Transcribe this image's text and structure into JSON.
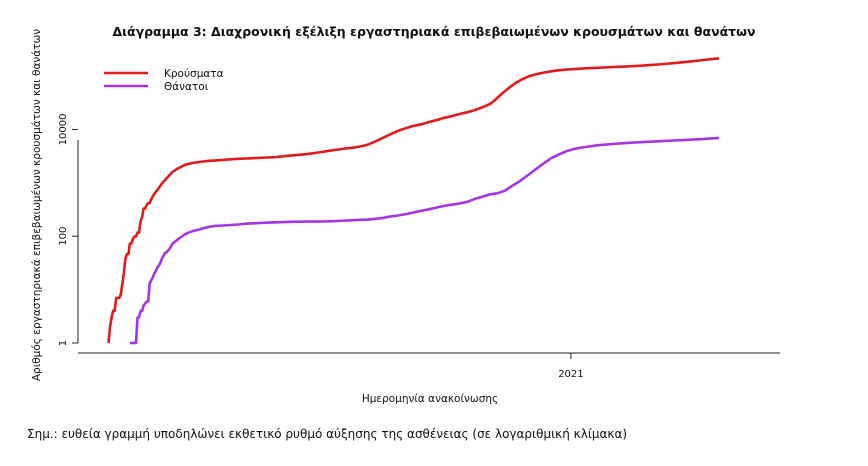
{
  "chart_data": {
    "type": "line",
    "title": "Διάγραμμα 3: Διαχρονική εξέλιξη εργαστηριακά επιβεβαιωμένων κρουσμάτων και θανάτων",
    "xlabel": "Ημερομηνία ανακοίνωσης",
    "ylabel": "Αριθμός εργαστηριακά επιβεβαιωμένων κρουσμάτων και θανάτων",
    "y_scale": "log",
    "ylim": [
      1,
      200000
    ],
    "xlim": [
      -20,
      440
    ],
    "x_unit": "days since first reported case",
    "x_ticks": [
      {
        "x": 303,
        "label": "2021"
      }
    ],
    "y_ticks": [
      {
        "value": 1,
        "label": "1"
      },
      {
        "value": 100,
        "label": "100"
      },
      {
        "value": 10000,
        "label": "10000"
      }
    ],
    "legend_position": "top-left",
    "series": [
      {
        "name": "Κρούσματα",
        "color": "#e11b1b",
        "points": [
          [
            0,
            1
          ],
          [
            1,
            2
          ],
          [
            2,
            3
          ],
          [
            3,
            4
          ],
          [
            4,
            4
          ],
          [
            5,
            7
          ],
          [
            6,
            7
          ],
          [
            7,
            7
          ],
          [
            8,
            8
          ],
          [
            10,
            20
          ],
          [
            11,
            37
          ],
          [
            12,
            46
          ],
          [
            13,
            46
          ],
          [
            14,
            73
          ],
          [
            15,
            73
          ],
          [
            16,
            89
          ],
          [
            17,
            99
          ],
          [
            18,
            99
          ],
          [
            19,
            117
          ],
          [
            20,
            117
          ],
          [
            21,
            190
          ],
          [
            22,
            228
          ],
          [
            23,
            331
          ],
          [
            24,
            331
          ],
          [
            25,
            387
          ],
          [
            26,
            418
          ],
          [
            27,
            418
          ],
          [
            28,
            495
          ],
          [
            30,
            624
          ],
          [
            32,
            735
          ],
          [
            35,
            966
          ],
          [
            38,
            1212
          ],
          [
            42,
            1613
          ],
          [
            45,
            1832
          ],
          [
            50,
            2170
          ],
          [
            55,
            2351
          ],
          [
            60,
            2470
          ],
          [
            65,
            2576
          ],
          [
            70,
            2632
          ],
          [
            75,
            2690
          ],
          [
            80,
            2760
          ],
          [
            85,
            2820
          ],
          [
            90,
            2860
          ],
          [
            95,
            2900
          ],
          [
            100,
            2950
          ],
          [
            105,
            3000
          ],
          [
            110,
            3050
          ],
          [
            115,
            3150
          ],
          [
            120,
            3260
          ],
          [
            125,
            3350
          ],
          [
            130,
            3450
          ],
          [
            135,
            3600
          ],
          [
            140,
            3800
          ],
          [
            145,
            4000
          ],
          [
            150,
            4200
          ],
          [
            155,
            4400
          ],
          [
            160,
            4550
          ],
          [
            165,
            4800
          ],
          [
            170,
            5200
          ],
          [
            175,
            6000
          ],
          [
            180,
            7000
          ],
          [
            185,
            8200
          ],
          [
            190,
            9500
          ],
          [
            195,
            10600
          ],
          [
            200,
            11700
          ],
          [
            205,
            12500
          ],
          [
            210,
            13800
          ],
          [
            215,
            15000
          ],
          [
            220,
            16500
          ],
          [
            225,
            17800
          ],
          [
            230,
            19500
          ],
          [
            235,
            21000
          ],
          [
            240,
            23000
          ],
          [
            245,
            26000
          ],
          [
            250,
            30000
          ],
          [
            253,
            35000
          ],
          [
            256,
            42000
          ],
          [
            260,
            53000
          ],
          [
            263,
            62000
          ],
          [
            267,
            75000
          ],
          [
            270,
            84000
          ],
          [
            275,
            98000
          ],
          [
            280,
            108000
          ],
          [
            285,
            116000
          ],
          [
            290,
            123000
          ],
          [
            295,
            128000
          ],
          [
            300,
            132000
          ],
          [
            310,
            138000
          ],
          [
            320,
            143000
          ],
          [
            330,
            147000
          ],
          [
            340,
            152000
          ],
          [
            350,
            157000
          ],
          [
            360,
            165000
          ],
          [
            370,
            174000
          ],
          [
            380,
            186000
          ],
          [
            390,
            200000
          ],
          [
            400,
            215000
          ]
        ]
      },
      {
        "name": "Θάνατοι",
        "color": "#a435e6",
        "points": [
          [
            14,
            1
          ],
          [
            15,
            1
          ],
          [
            16,
            1
          ],
          [
            17,
            1
          ],
          [
            18,
            1
          ],
          [
            19,
            3
          ],
          [
            20,
            3
          ],
          [
            21,
            4
          ],
          [
            22,
            4
          ],
          [
            23,
            5
          ],
          [
            25,
            6
          ],
          [
            26,
            6
          ],
          [
            27,
            13
          ],
          [
            28,
            15
          ],
          [
            29,
            17
          ],
          [
            30,
            20
          ],
          [
            31,
            22
          ],
          [
            32,
            26
          ],
          [
            33,
            28
          ],
          [
            34,
            32
          ],
          [
            35,
            38
          ],
          [
            36,
            43
          ],
          [
            37,
            48
          ],
          [
            38,
            50
          ],
          [
            40,
            58
          ],
          [
            42,
            73
          ],
          [
            44,
            81
          ],
          [
            46,
            90
          ],
          [
            48,
            99
          ],
          [
            50,
            108
          ],
          [
            52,
            116
          ],
          [
            55,
            124
          ],
          [
            58,
            130
          ],
          [
            61,
            138
          ],
          [
            64,
            146
          ],
          [
            67,
            152
          ],
          [
            70,
            156
          ],
          [
            75,
            159
          ],
          [
            80,
            162
          ],
          [
            85,
            166
          ],
          [
            90,
            172
          ],
          [
            95,
            175
          ],
          [
            100,
            178
          ],
          [
            105,
            180
          ],
          [
            110,
            182
          ],
          [
            115,
            184
          ],
          [
            120,
            186
          ],
          [
            125,
            187
          ],
          [
            130,
            188
          ],
          [
            135,
            188
          ],
          [
            140,
            189
          ],
          [
            145,
            190
          ],
          [
            150,
            193
          ],
          [
            155,
            196
          ],
          [
            160,
            200
          ],
          [
            165,
            203
          ],
          [
            170,
            205
          ],
          [
            175,
            212
          ],
          [
            180,
            220
          ],
          [
            185,
            235
          ],
          [
            190,
            246
          ],
          [
            195,
            260
          ],
          [
            200,
            280
          ],
          [
            205,
            300
          ],
          [
            210,
            320
          ],
          [
            215,
            345
          ],
          [
            220,
            370
          ],
          [
            225,
            390
          ],
          [
            230,
            410
          ],
          [
            235,
            440
          ],
          [
            240,
            500
          ],
          [
            245,
            550
          ],
          [
            250,
            610
          ],
          [
            255,
            640
          ],
          [
            260,
            720
          ],
          [
            265,
            900
          ],
          [
            270,
            1100
          ],
          [
            275,
            1400
          ],
          [
            280,
            1800
          ],
          [
            285,
            2300
          ],
          [
            290,
            2900
          ],
          [
            295,
            3400
          ],
          [
            300,
            3900
          ],
          [
            305,
            4300
          ],
          [
            310,
            4600
          ],
          [
            315,
            4800
          ],
          [
            320,
            5050
          ],
          [
            330,
            5350
          ],
          [
            340,
            5600
          ],
          [
            350,
            5800
          ],
          [
            360,
            6000
          ],
          [
            370,
            6200
          ],
          [
            380,
            6400
          ],
          [
            390,
            6650
          ],
          [
            400,
            6950
          ]
        ]
      }
    ]
  },
  "footnote": "Σημ.: ευθεία γραμμή υποδηλώνει εκθετικό ρυθμό αύξησης της ασθένειας (σε λογαριθμική κλίμακα)"
}
